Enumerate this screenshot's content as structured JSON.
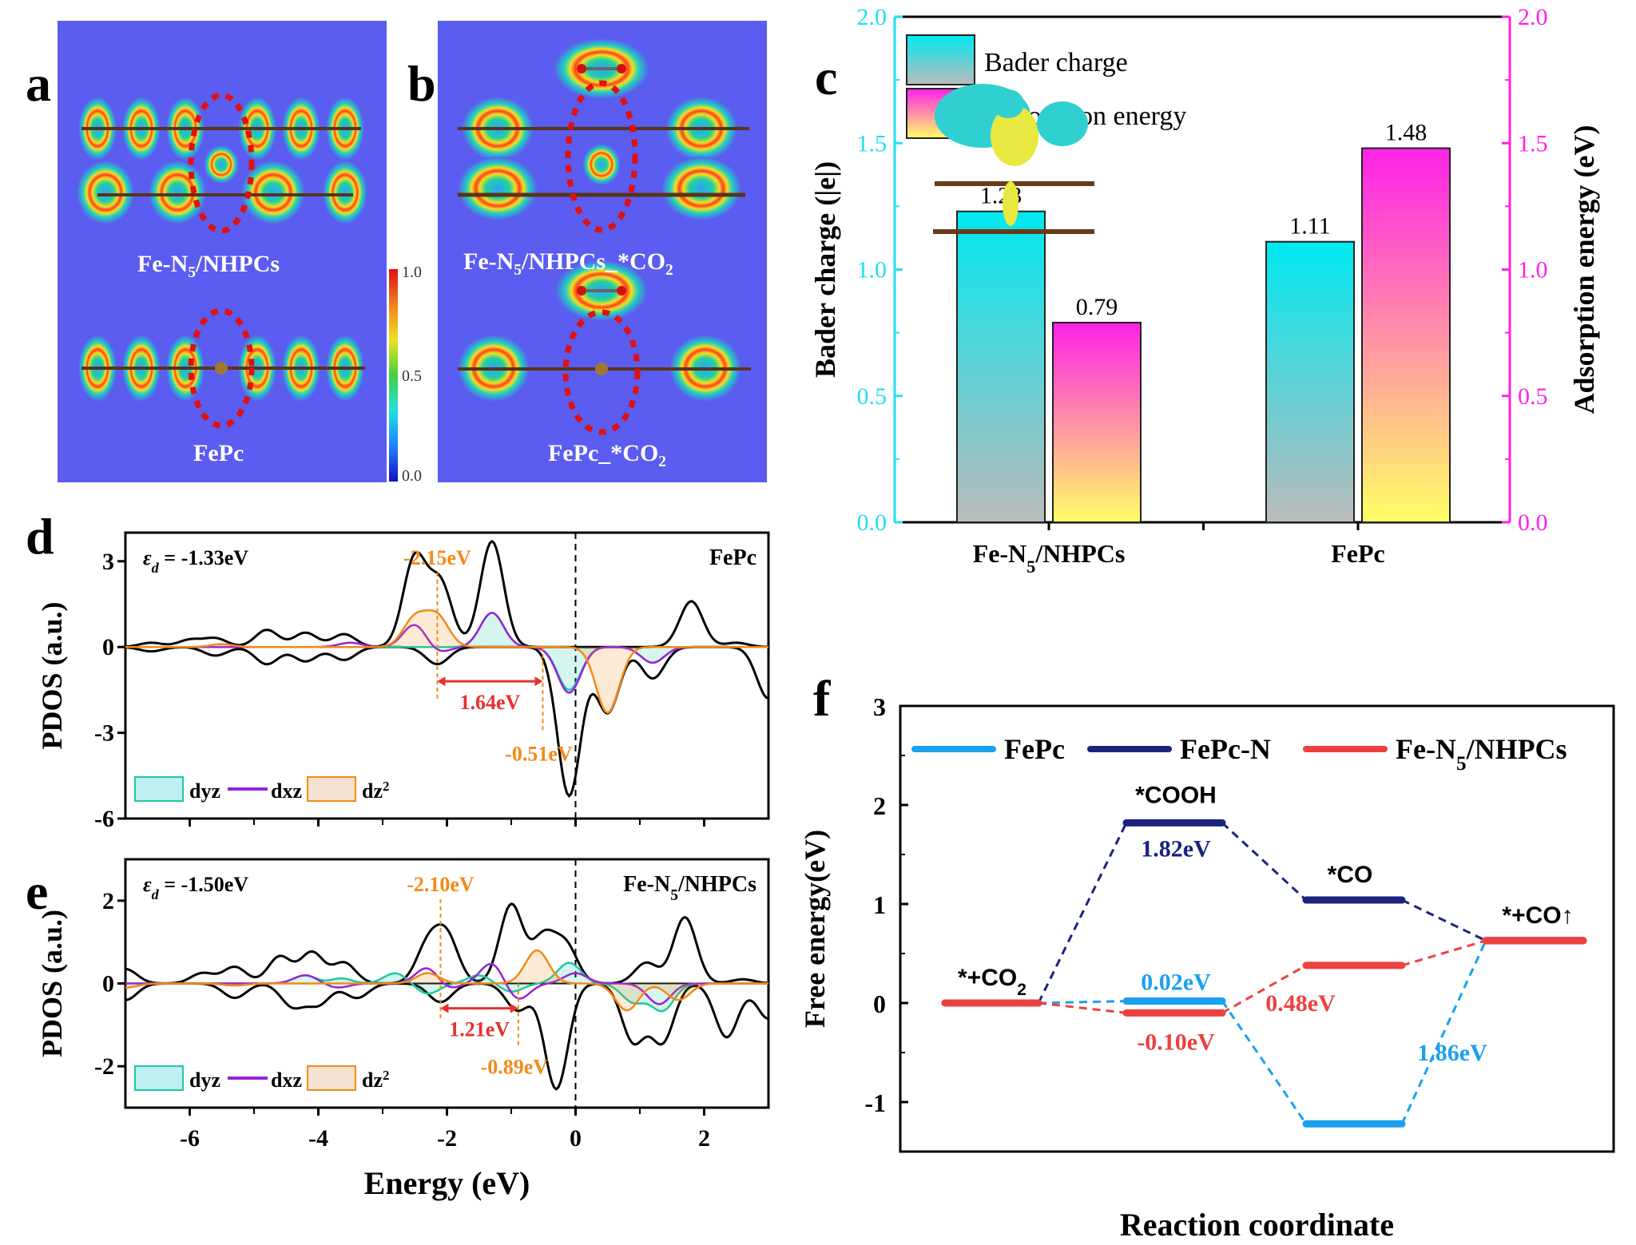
{
  "panels": {
    "a": {
      "label": "a",
      "captions": [
        "Fe-N5/NHPCs",
        "FePc"
      ]
    },
    "b": {
      "label": "b",
      "captions": [
        "Fe-N5/NHPCs_*CO2",
        "FePc_*CO2"
      ]
    },
    "c": {
      "label": "c"
    },
    "d": {
      "label": "d"
    },
    "e": {
      "label": "e"
    },
    "f": {
      "label": "f"
    }
  },
  "colorbar": {
    "ticks": [
      "1.0",
      "0.5",
      "0.0"
    ]
  },
  "chart_data": [
    {
      "id": "c",
      "type": "bar",
      "categories": [
        "Fe-N5/NHPCs",
        "FePc"
      ],
      "series": [
        {
          "name": "Bader charge",
          "axis": "left",
          "values": [
            1.23,
            1.11
          ],
          "labels": [
            "1.23",
            "1.11"
          ],
          "color_top": "#00e8f0",
          "color_bottom": "#bbbbbb"
        },
        {
          "name": "Adsorption energy",
          "axis": "right",
          "values": [
            0.79,
            1.48
          ],
          "labels": [
            "0.79",
            "1.48"
          ],
          "color_top": "#ff22e8",
          "color_bottom": "#ffff66"
        }
      ],
      "ylabel": "Bader charge (|e|)",
      "y2label": "Adsorption energy (eV)",
      "ylim": [
        0,
        2.0
      ],
      "y2lim": [
        0,
        2.0
      ],
      "yticks": [
        "0.0",
        "0.5",
        "1.0",
        "1.5",
        "2.0"
      ],
      "left_axis_color": "#22e0ee",
      "right_axis_color": "#ff22e8",
      "legend": "top-left"
    },
    {
      "id": "d",
      "type": "line",
      "title": "FePc",
      "annotation_ed": "εd = -1.33eV",
      "ylabel": "PDOS (a.u.)",
      "xlabel": "",
      "xlim": [
        -7,
        3
      ],
      "ylim": [
        -6,
        4
      ],
      "yticks": [
        -6,
        -3,
        0,
        3
      ],
      "xticks": [
        -6,
        -4,
        -2,
        0,
        2
      ],
      "markers": [
        {
          "x": -2.15,
          "label": "-2.15eV"
        },
        {
          "x": -0.51,
          "label": "-0.51eV"
        }
      ],
      "gap": {
        "from": -2.15,
        "to": -0.51,
        "label": "1.64eV"
      },
      "legend": [
        "dyz",
        "dxz",
        "dz2"
      ],
      "series": [
        {
          "name": "total-up",
          "color": "#000000",
          "peaks": [
            [
              -6.6,
              0.15
            ],
            [
              -6,
              0.25
            ],
            [
              -5.6,
              0.3
            ],
            [
              -4.8,
              0.6
            ],
            [
              -4.2,
              0.5
            ],
            [
              -3.6,
              0.45
            ],
            [
              -2.5,
              3.1
            ],
            [
              -2.1,
              2.2
            ],
            [
              -1.3,
              3.7
            ],
            [
              1.8,
              1.6
            ],
            [
              2.5,
              0.15
            ]
          ]
        },
        {
          "name": "total-down",
          "color": "#000000",
          "peaks": [
            [
              -6.6,
              -0.15
            ],
            [
              -5.6,
              -0.3
            ],
            [
              -4.8,
              -0.6
            ],
            [
              -4.2,
              -0.5
            ],
            [
              -3.6,
              -0.45
            ],
            [
              -2.15,
              -0.6
            ],
            [
              -0.1,
              -5.2
            ],
            [
              0.5,
              -2.3
            ],
            [
              1.2,
              -1.1
            ],
            [
              3,
              -1.8
            ]
          ]
        },
        {
          "name": "dyz",
          "color": "#1ec8a0",
          "peaks": [
            [
              -1.3,
              1.2
            ],
            [
              -0.1,
              -1.5
            ],
            [
              1.2,
              -0.55
            ]
          ]
        },
        {
          "name": "dxz",
          "color": "#9a22d8",
          "peaks": [
            [
              -3.5,
              0.15
            ],
            [
              -2.5,
              0.8
            ],
            [
              -2.15,
              -0.2
            ],
            [
              -1.3,
              1.2
            ],
            [
              -0.1,
              -1.6
            ],
            [
              1.2,
              -0.55
            ]
          ]
        },
        {
          "name": "dz2",
          "color": "#f28a18",
          "peaks": [
            [
              -5.5,
              0.1
            ],
            [
              -2.5,
              1.0
            ],
            [
              -2.15,
              1.05
            ],
            [
              0.5,
              -2.3
            ]
          ]
        }
      ]
    },
    {
      "id": "e",
      "type": "line",
      "title": "Fe-N5/NHPCs",
      "annotation_ed": "εd = -1.50eV",
      "ylabel": "PDOS (a.u.)",
      "xlabel": "Energy (eV)",
      "xlim": [
        -7,
        3
      ],
      "ylim": [
        -3,
        3
      ],
      "yticks": [
        -2,
        0,
        2
      ],
      "xticks": [
        -6,
        -4,
        -2,
        0,
        2
      ],
      "markers": [
        {
          "x": -2.1,
          "label": "-2.10eV"
        },
        {
          "x": -0.89,
          "label": "-0.89eV"
        }
      ],
      "gap": {
        "from": -2.1,
        "to": -0.89,
        "label": "1.21eV"
      },
      "legend": [
        "dyz",
        "dxz",
        "dz2"
      ],
      "series": [
        {
          "name": "total-up",
          "color": "#000000",
          "peaks": [
            [
              -7,
              0.35
            ],
            [
              -5.8,
              0.25
            ],
            [
              -5.3,
              0.4
            ],
            [
              -4.6,
              0.65
            ],
            [
              -4.1,
              0.75
            ],
            [
              -3.6,
              0.5
            ],
            [
              -2.3,
              0.9
            ],
            [
              -2.0,
              1.1
            ],
            [
              -1.0,
              1.9
            ],
            [
              -0.5,
              1.1
            ],
            [
              -0.15,
              0.9
            ],
            [
              1.1,
              0.5
            ],
            [
              1.7,
              1.6
            ],
            [
              2.6,
              0.1
            ]
          ]
        },
        {
          "name": "total-down",
          "color": "#000000",
          "peaks": [
            [
              -7,
              -0.4
            ],
            [
              -5.3,
              -0.35
            ],
            [
              -4.4,
              -0.55
            ],
            [
              -4.0,
              -0.5
            ],
            [
              -3.4,
              -0.35
            ],
            [
              -2.1,
              -0.45
            ],
            [
              -0.9,
              -0.65
            ],
            [
              -0.3,
              -2.55
            ],
            [
              0.9,
              -1.4
            ],
            [
              1.35,
              -1.4
            ],
            [
              2.35,
              -1.3
            ],
            [
              3,
              -0.85
            ]
          ]
        },
        {
          "name": "dyz",
          "color": "#1ec8a0",
          "peaks": [
            [
              -4.2,
              0.2
            ],
            [
              -3.7,
              0.2
            ],
            [
              -2.8,
              0.25
            ],
            [
              -1.5,
              0.2
            ],
            [
              -0.1,
              0.5
            ],
            [
              -3.8,
              -0.1
            ],
            [
              -2.3,
              -0.25
            ],
            [
              -1.0,
              -0.2
            ],
            [
              0.9,
              -0.45
            ],
            [
              1.35,
              -0.65
            ]
          ]
        },
        {
          "name": "dxz",
          "color": "#9a22d8",
          "peaks": [
            [
              -4.2,
              0.2
            ],
            [
              -2.3,
              0.4
            ],
            [
              -1.3,
              0.5
            ],
            [
              0,
              0.25
            ],
            [
              -3.7,
              -0.1
            ],
            [
              -2.0,
              -0.15
            ],
            [
              -0.9,
              -0.4
            ],
            [
              1.3,
              -0.5
            ]
          ]
        },
        {
          "name": "dz2",
          "color": "#f28a18",
          "peaks": [
            [
              -7,
              0.1
            ],
            [
              -5.3,
              0.15
            ],
            [
              -2.3,
              0.25
            ],
            [
              -0.6,
              0.8
            ],
            [
              -7,
              -0.2
            ],
            [
              -5.3,
              -0.2
            ],
            [
              0.8,
              -0.65
            ],
            [
              1.6,
              -0.4
            ]
          ]
        }
      ]
    },
    {
      "id": "f",
      "type": "line",
      "subtype": "free-energy-diagram",
      "ylabel": "Free energy(eV)",
      "xlabel": "Reaction coordinate",
      "ylim": [
        -1.5,
        3
      ],
      "yticks": [
        -1,
        0,
        1,
        2,
        3
      ],
      "steps": [
        "*+CO2",
        "*COOH",
        "*CO",
        "*+CO↑"
      ],
      "legend": "top",
      "series": [
        {
          "name": "FePc",
          "color": "#1aa0ee",
          "values": [
            0,
            0.02,
            -1.22,
            0.63
          ]
        },
        {
          "name": "FePc-N",
          "color": "#1a237e",
          "values": [
            0,
            1.82,
            1.04,
            0.63
          ]
        },
        {
          "name": "Fe-N5/NHPCs",
          "color": "#ee4040",
          "values": [
            0,
            -0.1,
            0.38,
            0.63
          ]
        }
      ],
      "annotations": [
        {
          "text": "1.82eV",
          "color": "#1a237e",
          "step": 1,
          "pos": "below-FePc-N"
        },
        {
          "text": "0.02eV",
          "color": "#1aa0ee",
          "step": 1,
          "pos": "above-FePc"
        },
        {
          "text": "-0.10eV",
          "color": "#ee4040",
          "step": 1,
          "pos": "below-Fe-N5"
        },
        {
          "text": "0.48eV",
          "color": "#ee4040",
          "step": 1.5,
          "pos": "mid"
        },
        {
          "text": "1.86eV",
          "color": "#1aa0ee",
          "step": 2.5,
          "pos": "mid"
        }
      ]
    }
  ]
}
